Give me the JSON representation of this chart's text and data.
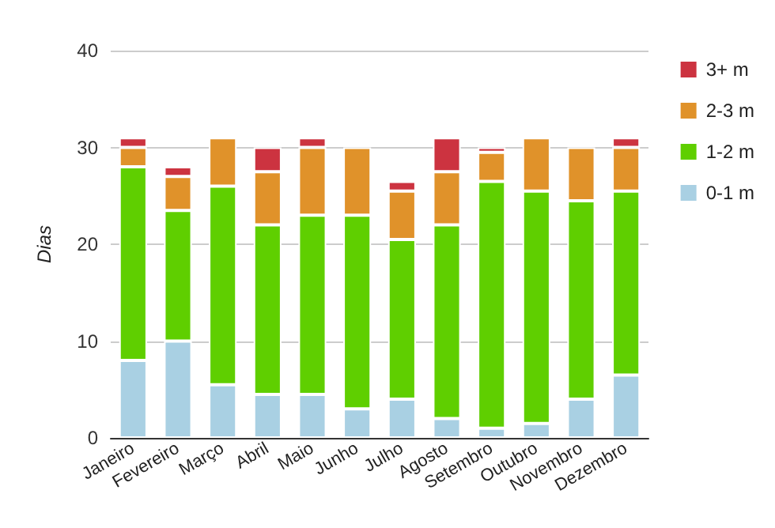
{
  "chart_data": {
    "type": "bar",
    "stacked": true,
    "ylabel": "Dias",
    "categories": [
      "Janeiro",
      "Fevereiro",
      "Março",
      "Abril",
      "Maio",
      "Junho",
      "Julho",
      "Agosto",
      "Setembro",
      "Outubro",
      "Novembro",
      "Dezembro"
    ],
    "series": [
      {
        "name": "0-1 m",
        "color": "#a9d0e3",
        "values": [
          8,
          10,
          5.5,
          4.5,
          4.5,
          3,
          4,
          2,
          1,
          1.5,
          4,
          6.5
        ]
      },
      {
        "name": "1-2 m",
        "color": "#5fcf00",
        "values": [
          20,
          13.5,
          20.5,
          17.5,
          18.5,
          20,
          16.5,
          20,
          25.5,
          24,
          20.5,
          19
        ]
      },
      {
        "name": "2-3 m",
        "color": "#e0922a",
        "values": [
          2,
          3.5,
          5,
          5.5,
          7,
          7,
          5,
          5.5,
          3,
          5.5,
          5.5,
          4.5
        ]
      },
      {
        "name": "3+ m",
        "color": "#cc3340",
        "values": [
          1,
          1,
          0,
          2.5,
          1,
          0,
          1,
          3.5,
          0.5,
          0,
          0,
          1
        ]
      }
    ],
    "ylim": [
      0,
      40
    ],
    "yticks": [
      0,
      10,
      20,
      30,
      40
    ],
    "grid": "y",
    "legend": "right"
  }
}
